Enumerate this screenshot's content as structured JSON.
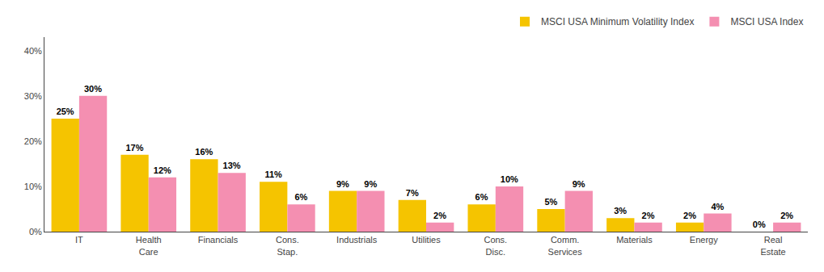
{
  "chart_data": {
    "type": "bar",
    "categories": [
      "IT",
      "Health\nCare",
      "Financials",
      "Cons.\nStap.",
      "Industrials",
      "Utilities",
      "Cons.\nDisc.",
      "Comm.\nServices",
      "Materials",
      "Energy",
      "Real\nEstate"
    ],
    "series": [
      {
        "name": "MSCI USA Minimum Volatility Index",
        "color": "#F5C400",
        "values": [
          25,
          17,
          16,
          11,
          9,
          7,
          6,
          5,
          3,
          2,
          0
        ],
        "value_labels": [
          "25%",
          "17%",
          "16%",
          "11%",
          "9%",
          "7%",
          "6%",
          "5%",
          "3%",
          "2%",
          "0%"
        ]
      },
      {
        "name": "MSCI USA Index",
        "color": "#F48FB1",
        "values": [
          30,
          12,
          13,
          6,
          9,
          2,
          10,
          9,
          2,
          4,
          2
        ],
        "value_labels": [
          "30%",
          "12%",
          "13%",
          "6%",
          "9%",
          "2%",
          "10%",
          "9%",
          "2%",
          "4%",
          "2%"
        ]
      }
    ],
    "ylim": [
      0,
      43
    ],
    "yticks": [
      {
        "value": 0,
        "label": "0%"
      },
      {
        "value": 10,
        "label": "10%"
      },
      {
        "value": 20,
        "label": "20%"
      },
      {
        "value": 30,
        "label": "30%"
      },
      {
        "value": 40,
        "label": "40%"
      }
    ],
    "grid": false,
    "legend": "upper right",
    "data_labels": true
  }
}
